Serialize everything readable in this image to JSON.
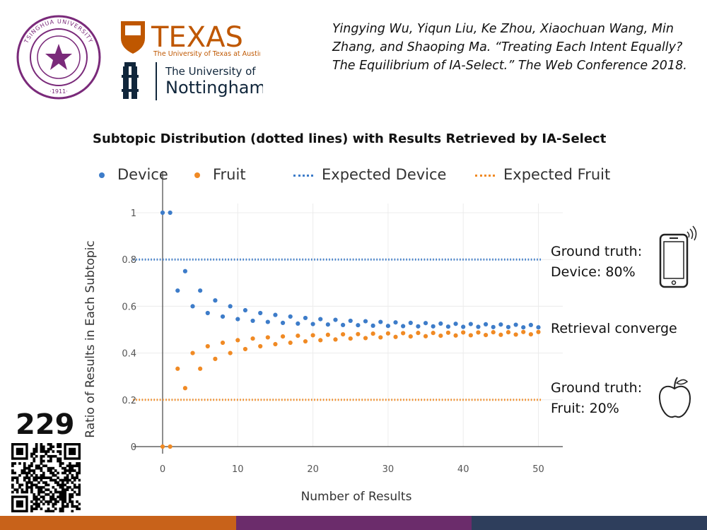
{
  "citation": "Yingying Wu, Yiqun Liu, Ke Zhou, Xiaochuan Wang, Min Zhang, and Shaoping Ma. “Treating Each Intent Equally? The Equilibrium of IA-Select.” The Web Conference 2018.",
  "logos": {
    "tsinghua": {
      "year": "1911",
      "ring_text": "TSINGHUA UNIVERSITY"
    },
    "texas": {
      "name": "TEXAS",
      "sub": "The University of Texas at Austin"
    },
    "nottingham": {
      "line1": "The University of",
      "line2": "Nottingham"
    }
  },
  "slide_number": "229",
  "colors": {
    "device": "#3d7cc9",
    "fruit": "#f08a24",
    "bar_orange": "#c8621a",
    "bar_purple": "#6b2c6b",
    "bar_navy": "#2e3e5c"
  },
  "annotations": {
    "device_line1": "Ground truth:",
    "device_line2": "Device: 80%",
    "converge": "Retrieval converge",
    "fruit_line1": "Ground truth:",
    "fruit_line2": "Fruit: 20%"
  },
  "icons": {
    "device": "smartphone-icon",
    "fruit": "apple-icon",
    "qr": "qr-code-icon"
  },
  "chart_data": {
    "type": "scatter",
    "title": "Subtopic Distribution (dotted lines) with Results Retrieved by IA-Select",
    "xlabel": "Number of Results",
    "ylabel": "Ratio of Results in Each Subtopic",
    "xlim": [
      -4,
      53
    ],
    "ylim": [
      0,
      1
    ],
    "xticks": [
      0,
      10,
      20,
      30,
      40,
      50
    ],
    "yticks": [
      0,
      0.2,
      0.4,
      0.6,
      0.8,
      1
    ],
    "legend_placement": "top",
    "grid": "horizontal and vertical, light",
    "series": [
      {
        "name": "Device",
        "kind": "points",
        "color": "#3d7cc9",
        "x": [
          0,
          1,
          2,
          3,
          4,
          5,
          6,
          7,
          8,
          9,
          10,
          11,
          12,
          13,
          14,
          15,
          16,
          17,
          18,
          19,
          20,
          21,
          22,
          23,
          24,
          25,
          26,
          27,
          28,
          29,
          30,
          31,
          32,
          33,
          34,
          35,
          36,
          37,
          38,
          39,
          40,
          41,
          42,
          43,
          44,
          45,
          46,
          47,
          48,
          49,
          50
        ],
        "y": [
          1,
          1,
          0.667,
          0.75,
          0.6,
          0.667,
          0.571,
          0.625,
          0.556,
          0.6,
          0.545,
          0.583,
          0.538,
          0.571,
          0.533,
          0.563,
          0.529,
          0.556,
          0.526,
          0.55,
          0.524,
          0.545,
          0.522,
          0.542,
          0.52,
          0.538,
          0.519,
          0.536,
          0.517,
          0.533,
          0.516,
          0.531,
          0.515,
          0.529,
          0.514,
          0.528,
          0.514,
          0.526,
          0.513,
          0.525,
          0.512,
          0.524,
          0.512,
          0.523,
          0.511,
          0.522,
          0.511,
          0.521,
          0.51,
          0.52,
          0.51
        ]
      },
      {
        "name": "Fruit",
        "kind": "points",
        "color": "#f08a24",
        "x": [
          0,
          1,
          2,
          3,
          4,
          5,
          6,
          7,
          8,
          9,
          10,
          11,
          12,
          13,
          14,
          15,
          16,
          17,
          18,
          19,
          20,
          21,
          22,
          23,
          24,
          25,
          26,
          27,
          28,
          29,
          30,
          31,
          32,
          33,
          34,
          35,
          36,
          37,
          38,
          39,
          40,
          41,
          42,
          43,
          44,
          45,
          46,
          47,
          48,
          49,
          50
        ],
        "y": [
          0,
          0,
          0.333,
          0.25,
          0.4,
          0.333,
          0.429,
          0.375,
          0.444,
          0.4,
          0.455,
          0.417,
          0.462,
          0.429,
          0.467,
          0.438,
          0.471,
          0.444,
          0.474,
          0.45,
          0.476,
          0.455,
          0.478,
          0.458,
          0.48,
          0.462,
          0.481,
          0.464,
          0.483,
          0.467,
          0.484,
          0.469,
          0.485,
          0.471,
          0.486,
          0.472,
          0.486,
          0.474,
          0.487,
          0.475,
          0.488,
          0.476,
          0.488,
          0.477,
          0.489,
          0.478,
          0.489,
          0.479,
          0.49,
          0.48,
          0.49
        ]
      },
      {
        "name": "Expected Device",
        "kind": "dotted-line",
        "color": "#3d7cc9",
        "y": 0.8
      },
      {
        "name": "Expected Fruit",
        "kind": "dotted-line",
        "color": "#f08a24",
        "y": 0.2
      }
    ]
  }
}
